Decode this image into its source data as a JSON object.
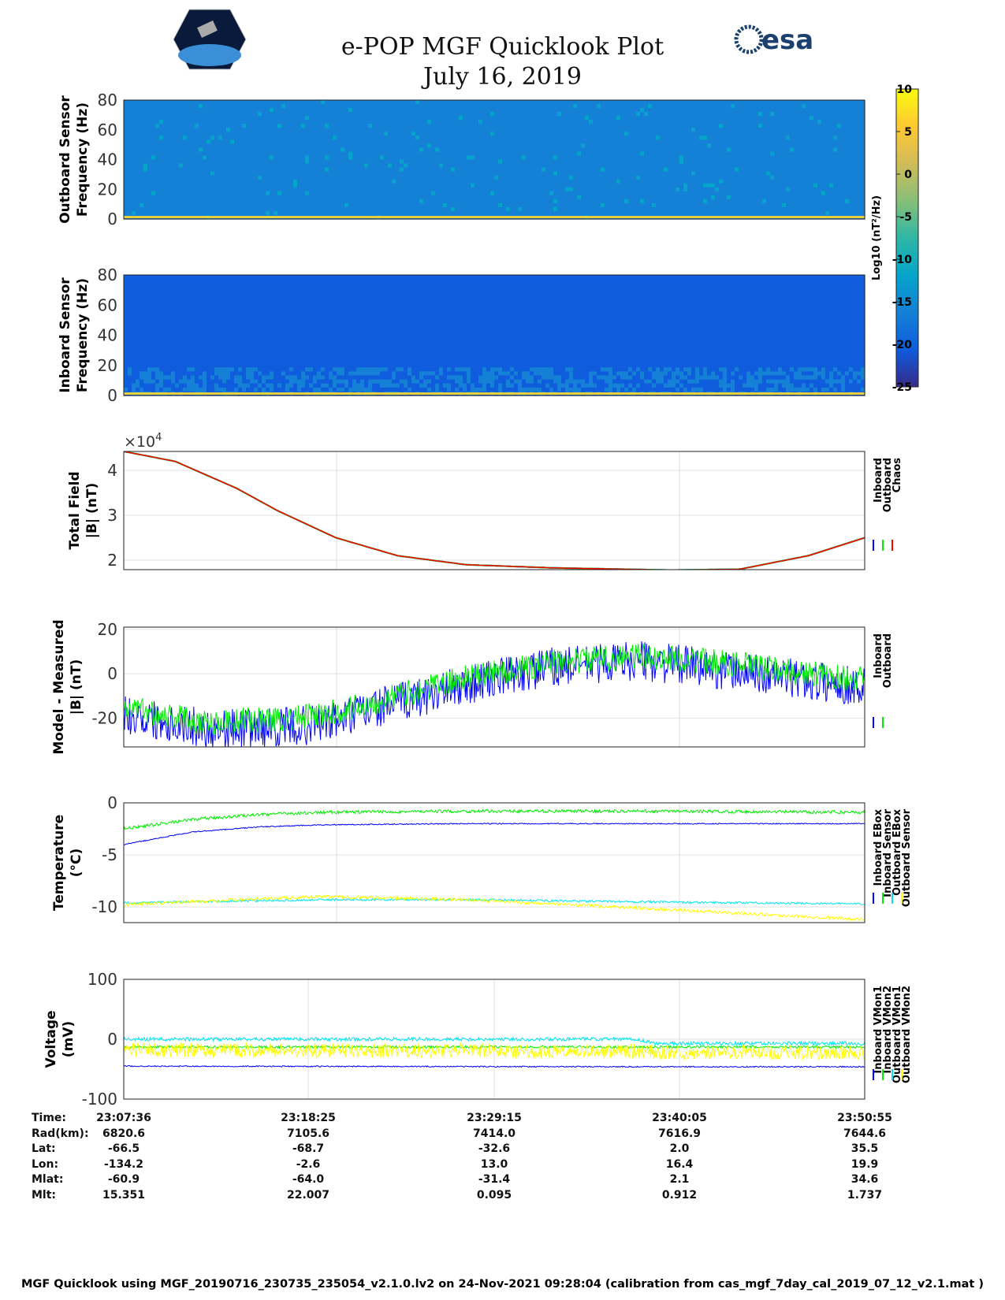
{
  "header": {
    "title": "e-POP MGF Quicklook Plot",
    "date": "July 16, 2019",
    "logo_left": "CASSIOPE",
    "logo_right": "esa"
  },
  "colors": {
    "inboard": "#0000ff",
    "outboard": "#00ee00",
    "chaos": "#ff0000",
    "cyan": "#00e5ee",
    "yellow": "#ffff00"
  },
  "colorbar": {
    "label": "Log10 (nT²/Hz)",
    "min": -25,
    "max": 10,
    "ticks": [
      "10",
      "5",
      "0",
      "-5",
      "-10",
      "-15",
      "-20",
      "-25"
    ]
  },
  "chart_data": [
    {
      "type": "heatmap",
      "id": "outboard_spec",
      "ylabel": [
        "Outboard Sensor",
        "Frequency (Hz)"
      ],
      "ylim": [
        0,
        80
      ],
      "yticks": [
        "80",
        "60",
        "40",
        "20",
        "0"
      ],
      "typical_level": -15
    },
    {
      "type": "heatmap",
      "id": "inboard_spec",
      "ylabel": [
        "Inboard Sensor",
        "Frequency (Hz)"
      ],
      "ylim": [
        0,
        80
      ],
      "yticks": [
        "80",
        "60",
        "40",
        "20",
        "0"
      ],
      "typical_level": -21
    },
    {
      "type": "line",
      "id": "total",
      "ylabel": [
        "Total Field",
        "|B| (nT)"
      ],
      "ylim": [
        1.79,
        4.42
      ],
      "yticks": [
        2,
        3,
        4
      ],
      "exponent": "×10",
      "exponent_power": "4",
      "legend": [
        "Inboard",
        "Outboard",
        "Chaos"
      ],
      "series_colors": [
        "#0000ff",
        "#00ee00",
        "#ff0000"
      ],
      "x": [
        0,
        3,
        6.6,
        9,
        12.4,
        16,
        20,
        25,
        32,
        36,
        40,
        43.3
      ],
      "series": [
        {
          "name": "Chaos",
          "values": [
            4.42,
            4.2,
            3.6,
            3.1,
            2.5,
            2.1,
            1.9,
            1.83,
            1.78,
            1.8,
            2.1,
            2.5
          ]
        }
      ],
      "noise": 0
    },
    {
      "type": "line",
      "id": "model",
      "ylabel": [
        "Model - Measured",
        "|B| (nT)"
      ],
      "ylim": [
        -33,
        21
      ],
      "yticks": [
        20,
        0,
        -20
      ],
      "legend": [
        "Inboard",
        "Outboard"
      ],
      "series_colors": [
        "#0000ff",
        "#00ee00"
      ],
      "x": [
        0,
        5,
        10,
        12,
        15,
        20,
        25,
        30,
        35,
        40,
        43.3
      ],
      "series": [
        {
          "name": "Inboard",
          "values": [
            -18,
            -25,
            -24,
            -22,
            -15,
            -5,
            3,
            6,
            2,
            -3,
            -6
          ],
          "noise": 9
        },
        {
          "name": "Outboard",
          "values": [
            -15,
            -22,
            -20,
            -18,
            -12,
            -2,
            5,
            8,
            5,
            0,
            -3
          ],
          "noise": 6
        }
      ]
    },
    {
      "type": "line",
      "id": "temp",
      "ylabel": [
        "Temperature",
        "(°C)"
      ],
      "ylim": [
        -11.5,
        0
      ],
      "yticks": [
        0,
        -5,
        -10
      ],
      "legend": [
        "Inboard EBox",
        "Inboard Sensor",
        "Outboard EBox",
        "Outboard Sensor"
      ],
      "series_colors": [
        "#0000ff",
        "#00ee00",
        "#00e5ee",
        "#ffff00"
      ],
      "x": [
        0,
        4,
        8,
        12,
        20,
        30,
        43.3
      ],
      "series": [
        {
          "name": "Inboard EBox",
          "values": [
            -4,
            -2.8,
            -2.3,
            -2.1,
            -2,
            -2,
            -2
          ],
          "noise": 0.05
        },
        {
          "name": "Inboard Sensor",
          "values": [
            -2.5,
            -1.6,
            -1.1,
            -0.9,
            -0.8,
            -0.8,
            -0.9
          ],
          "noise": 0.15
        },
        {
          "name": "Outboard EBox",
          "values": [
            -9.6,
            -9.5,
            -9.4,
            -9.3,
            -9.3,
            -9.5,
            -9.7
          ],
          "noise": 0.1
        },
        {
          "name": "Outboard Sensor",
          "values": [
            -9.8,
            -9.5,
            -9.2,
            -9.0,
            -9.3,
            -10.1,
            -11.2
          ],
          "noise": 0.15
        }
      ]
    },
    {
      "type": "line",
      "id": "volt",
      "ylabel": [
        "Voltage",
        "(mV)"
      ],
      "ylim": [
        -100,
        100
      ],
      "yticks": [
        100,
        0,
        -100
      ],
      "legend": [
        "Inboard VMon1",
        "Inboard VMon2",
        "Outboard VMon1",
        "Outboard VMon2"
      ],
      "series_colors": [
        "#0000ff",
        "#00ee00",
        "#00e5ee",
        "#ffff00"
      ],
      "x": [
        0,
        30,
        31,
        43.3
      ],
      "series": [
        {
          "name": "Inboard VMon1",
          "values": [
            -45,
            -46,
            -46,
            -46
          ],
          "noise": 1
        },
        {
          "name": "Inboard VMon2",
          "values": [
            -13,
            -13,
            -13,
            -13
          ],
          "noise": 2
        },
        {
          "name": "Outboard VMon1",
          "values": [
            0,
            0,
            -7,
            -7
          ],
          "noise": 3
        },
        {
          "name": "Outboard VMon2",
          "values": [
            -18,
            -20,
            -22,
            -22
          ],
          "noise": 12
        }
      ]
    }
  ],
  "time_table": {
    "row_labels": [
      "Time:",
      "Rad(km):",
      "Lat:",
      "Lon:",
      "Mlat:",
      "Mlt:"
    ],
    "columns": [
      [
        "23:07:36",
        "6820.6",
        "-66.5",
        "-134.2",
        "-60.9",
        "15.351"
      ],
      [
        "23:18:25",
        "7105.6",
        "-68.7",
        "-2.6",
        "-64.0",
        "22.007"
      ],
      [
        "23:29:15",
        "7414.0",
        "-32.6",
        "13.0",
        "-31.4",
        "0.095"
      ],
      [
        "23:40:05",
        "7616.9",
        "2.0",
        "16.4",
        "2.1",
        "0.912"
      ],
      [
        "23:50:55",
        "7644.6",
        "35.5",
        "19.9",
        "34.6",
        "1.737"
      ]
    ]
  },
  "footer": "MGF Quicklook using MGF_20190716_230735_235054_v2.1.0.lv2 on 24-Nov-2021 09:28:04 (calibration from cas_mgf_7day_cal_2019_07_12_v2.1.mat )"
}
